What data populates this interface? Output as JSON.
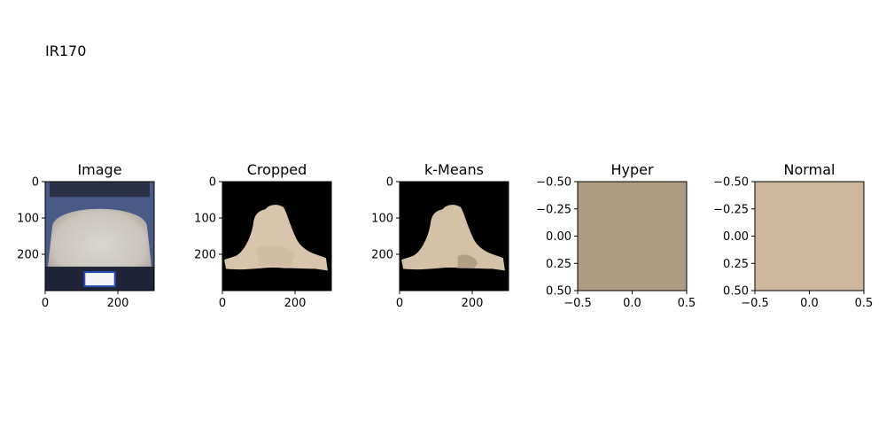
{
  "figure": {
    "suptitle": "IR170"
  },
  "chart_data": [
    {
      "type": "image",
      "title": "Image",
      "xticks": [
        "0",
        "200"
      ],
      "yticks": [
        "0",
        "100",
        "200"
      ],
      "xlim": [
        0,
        300
      ],
      "ylim": [
        0,
        300
      ],
      "content": "photo-neck-back"
    },
    {
      "type": "image",
      "title": "Cropped",
      "xticks": [
        "0",
        "200"
      ],
      "yticks": [
        "0",
        "100",
        "200"
      ],
      "xlim": [
        0,
        300
      ],
      "ylim": [
        0,
        300
      ],
      "content": "segmented-skin",
      "colors": {
        "skin": "#d8c6ac",
        "shade": "#cdb89c",
        "background": "#000000"
      }
    },
    {
      "type": "image",
      "title": "k-Means",
      "xticks": [
        "0",
        "200"
      ],
      "yticks": [
        "0",
        "100",
        "200"
      ],
      "xlim": [
        0,
        300
      ],
      "ylim": [
        0,
        300
      ],
      "content": "kmeans-skin",
      "colors": {
        "skin": "#d4c2a6",
        "hyper": "#b2a086",
        "background": "#000000"
      }
    },
    {
      "type": "heatmap",
      "title": "Hyper",
      "xticks": [
        "−0.5",
        "0.0",
        "0.5"
      ],
      "yticks": [
        "−0.50",
        "−0.25",
        "0.00",
        "0.25",
        "0.50"
      ],
      "xlim": [
        -0.5,
        0.5
      ],
      "ylim": [
        -0.5,
        0.5
      ],
      "fill": "#af9b81"
    },
    {
      "type": "heatmap",
      "title": "Normal",
      "xticks": [
        "−0.5",
        "0.0",
        "0.5"
      ],
      "yticks": [
        "−0.50",
        "−0.25",
        "0.00",
        "0.25",
        "0.50"
      ],
      "xlim": [
        -0.5,
        0.5
      ],
      "ylim": [
        -0.5,
        0.5
      ],
      "fill": "#cdb89e"
    }
  ]
}
